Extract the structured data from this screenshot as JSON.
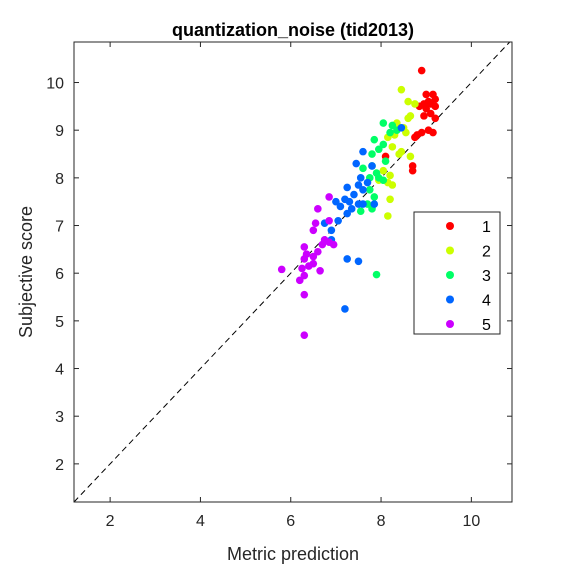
{
  "chart_data": {
    "type": "scatter",
    "title": "quantization_noise (tid2013)",
    "xlabel": "Metric prediction",
    "ylabel": "Subjective score",
    "xlim": [
      1.2,
      10.9
    ],
    "ylim": [
      1.2,
      10.85
    ],
    "xticks": [
      2,
      4,
      6,
      8,
      10
    ],
    "yticks": [
      2,
      3,
      4,
      5,
      6,
      7,
      8,
      9,
      10
    ],
    "grid": false,
    "legend_position": "right",
    "reference_line": "y = x (dashed)",
    "series": [
      {
        "name": "1",
        "color": "#ff0000",
        "points": [
          [
            8.9,
            10.25
          ],
          [
            9.0,
            9.75
          ],
          [
            9.15,
            9.75
          ],
          [
            9.2,
            9.65
          ],
          [
            9.05,
            9.6
          ],
          [
            8.95,
            9.55
          ],
          [
            9.1,
            9.55
          ],
          [
            8.85,
            9.5
          ],
          [
            9.2,
            9.5
          ],
          [
            9.0,
            9.45
          ],
          [
            9.1,
            9.35
          ],
          [
            8.95,
            9.3
          ],
          [
            9.2,
            9.25
          ],
          [
            9.05,
            9.0
          ],
          [
            9.15,
            8.95
          ],
          [
            8.9,
            8.95
          ],
          [
            8.8,
            8.9
          ],
          [
            8.75,
            8.85
          ],
          [
            8.1,
            8.45
          ],
          [
            8.7,
            8.25
          ],
          [
            8.7,
            8.15
          ]
        ]
      },
      {
        "name": "2",
        "color": "#ccff00",
        "points": [
          [
            8.45,
            9.85
          ],
          [
            8.6,
            9.6
          ],
          [
            8.75,
            9.55
          ],
          [
            8.65,
            9.3
          ],
          [
            8.6,
            9.25
          ],
          [
            8.35,
            9.15
          ],
          [
            8.5,
            9.05
          ],
          [
            8.55,
            8.95
          ],
          [
            8.3,
            8.9
          ],
          [
            8.15,
            8.85
          ],
          [
            8.25,
            8.65
          ],
          [
            8.45,
            8.55
          ],
          [
            8.4,
            8.5
          ],
          [
            8.65,
            8.45
          ],
          [
            8.05,
            8.15
          ],
          [
            8.2,
            8.05
          ],
          [
            7.95,
            7.95
          ],
          [
            8.15,
            7.9
          ],
          [
            8.25,
            7.85
          ],
          [
            8.2,
            7.55
          ],
          [
            8.15,
            7.2
          ]
        ]
      },
      {
        "name": "3",
        "color": "#00ff66",
        "points": [
          [
            8.25,
            9.1
          ],
          [
            8.05,
            9.15
          ],
          [
            8.35,
            9.0
          ],
          [
            8.2,
            8.95
          ],
          [
            7.85,
            8.8
          ],
          [
            8.05,
            8.7
          ],
          [
            7.95,
            8.6
          ],
          [
            7.8,
            8.5
          ],
          [
            8.1,
            8.35
          ],
          [
            7.8,
            8.25
          ],
          [
            7.6,
            8.2
          ],
          [
            7.9,
            8.1
          ],
          [
            7.75,
            8.0
          ],
          [
            7.95,
            8.0
          ],
          [
            8.05,
            7.95
          ],
          [
            7.75,
            7.75
          ],
          [
            7.85,
            7.6
          ],
          [
            7.7,
            7.45
          ],
          [
            7.8,
            7.35
          ],
          [
            7.55,
            7.3
          ],
          [
            7.9,
            5.97
          ]
        ]
      },
      {
        "name": "4",
        "color": "#0066ff",
        "points": [
          [
            8.45,
            9.05
          ],
          [
            7.6,
            8.55
          ],
          [
            7.45,
            8.3
          ],
          [
            7.8,
            8.25
          ],
          [
            7.55,
            8.0
          ],
          [
            7.7,
            7.9
          ],
          [
            7.5,
            7.85
          ],
          [
            7.25,
            7.8
          ],
          [
            7.6,
            7.75
          ],
          [
            7.4,
            7.65
          ],
          [
            7.2,
            7.55
          ],
          [
            7.0,
            7.5
          ],
          [
            7.3,
            7.5
          ],
          [
            7.5,
            7.45
          ],
          [
            7.6,
            7.45
          ],
          [
            7.85,
            7.45
          ],
          [
            7.1,
            7.4
          ],
          [
            7.35,
            7.35
          ],
          [
            7.25,
            7.25
          ],
          [
            7.05,
            7.1
          ],
          [
            6.75,
            7.05
          ],
          [
            6.9,
            6.9
          ],
          [
            6.9,
            6.7
          ],
          [
            7.25,
            6.3
          ],
          [
            7.5,
            6.25
          ],
          [
            7.2,
            5.25
          ]
        ]
      },
      {
        "name": "5",
        "color": "#cc00ff",
        "points": [
          [
            6.85,
            7.6
          ],
          [
            6.6,
            7.35
          ],
          [
            6.85,
            7.1
          ],
          [
            6.55,
            7.05
          ],
          [
            6.5,
            6.9
          ],
          [
            6.75,
            6.7
          ],
          [
            6.85,
            6.65
          ],
          [
            6.95,
            6.6
          ],
          [
            6.7,
            6.6
          ],
          [
            6.3,
            6.55
          ],
          [
            6.6,
            6.45
          ],
          [
            6.35,
            6.4
          ],
          [
            6.5,
            6.35
          ],
          [
            6.3,
            6.3
          ],
          [
            6.5,
            6.2
          ],
          [
            6.4,
            6.15
          ],
          [
            6.25,
            6.1
          ],
          [
            5.8,
            6.08
          ],
          [
            6.65,
            6.05
          ],
          [
            6.3,
            5.95
          ],
          [
            6.2,
            5.85
          ],
          [
            6.3,
            5.55
          ],
          [
            6.3,
            4.7
          ]
        ]
      }
    ]
  }
}
